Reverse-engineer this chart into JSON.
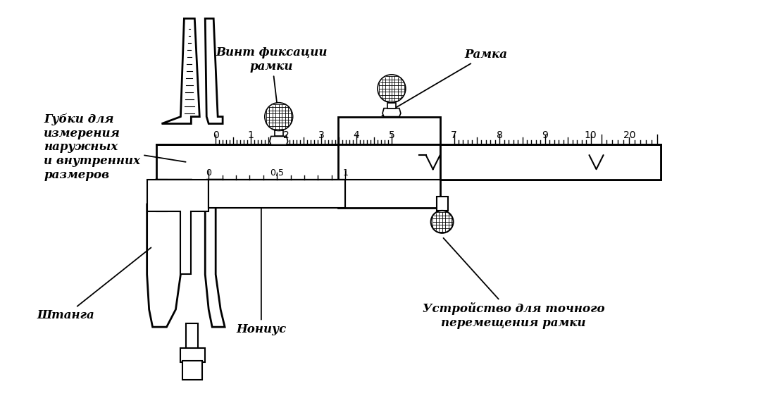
{
  "bg_color": "#ffffff",
  "fig_width": 10.96,
  "fig_height": 5.72,
  "labels": {
    "gubki": "Губки для\nизмерения\nнаружных\nи внутренних\nразмеров",
    "vint": "Винт фиксации\nрамки",
    "ramka": "Рамка",
    "shtanga": "Штанга",
    "nonius": "Нониус",
    "ustrojstvo": "Устройство для точного\nперемещения рамки"
  },
  "text_color": "#000000",
  "line_color": "#000000"
}
